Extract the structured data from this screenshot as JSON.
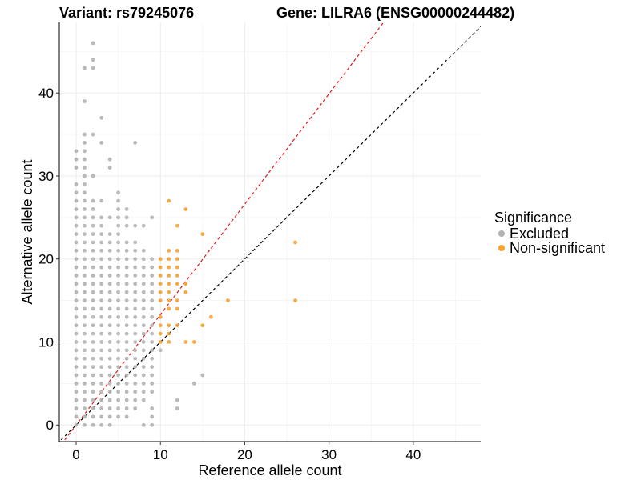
{
  "chart_data": {
    "type": "scatter",
    "title_left": "Variant: rs79245076",
    "title_right": "Gene: LILRA6 (ENSG00000244482)",
    "xlabel": "Reference allele count",
    "ylabel": "Alternative allele count",
    "xlim": [
      -2,
      48
    ],
    "ylim": [
      -2,
      48.5
    ],
    "x_ticks": [
      0,
      10,
      20,
      30,
      40
    ],
    "y_ticks": [
      0,
      10,
      20,
      30,
      40
    ],
    "grid": true,
    "legend": {
      "title": "Significance",
      "position": "right",
      "entries": [
        {
          "label": "Excluded",
          "color": "#b3b3b3"
        },
        {
          "label": "Non-significant",
          "color": "#f7a22f"
        }
      ]
    },
    "reference_lines": [
      {
        "name": "y = x",
        "slope": 1,
        "color": "#000000",
        "style": "dashed"
      },
      {
        "name": "upper threshold",
        "slope": 1.33,
        "color": "#e41a1c",
        "style": "dashed"
      }
    ],
    "series": [
      {
        "name": "Excluded",
        "color": "#b3b3b3",
        "points": [
          [
            0,
            0
          ],
          [
            0,
            1
          ],
          [
            0,
            2
          ],
          [
            0,
            3
          ],
          [
            0,
            4
          ],
          [
            0,
            5
          ],
          [
            0,
            6
          ],
          [
            0,
            7
          ],
          [
            0,
            8
          ],
          [
            0,
            9
          ],
          [
            0,
            10
          ],
          [
            0,
            11
          ],
          [
            0,
            12
          ],
          [
            0,
            13
          ],
          [
            0,
            14
          ],
          [
            0,
            15
          ],
          [
            0,
            16
          ],
          [
            0,
            17
          ],
          [
            0,
            18
          ],
          [
            0,
            19
          ],
          [
            0,
            20
          ],
          [
            0,
            21
          ],
          [
            0,
            22
          ],
          [
            0,
            23
          ],
          [
            0,
            24
          ],
          [
            0,
            25
          ],
          [
            0,
            26
          ],
          [
            0,
            27
          ],
          [
            0,
            28
          ],
          [
            0,
            29
          ],
          [
            0,
            31
          ],
          [
            0,
            32
          ],
          [
            0,
            33
          ],
          [
            1,
            0
          ],
          [
            1,
            1
          ],
          [
            1,
            2
          ],
          [
            1,
            3
          ],
          [
            1,
            4
          ],
          [
            1,
            5
          ],
          [
            1,
            6
          ],
          [
            1,
            7
          ],
          [
            1,
            8
          ],
          [
            1,
            9
          ],
          [
            1,
            10
          ],
          [
            1,
            11
          ],
          [
            1,
            12
          ],
          [
            1,
            13
          ],
          [
            1,
            14
          ],
          [
            1,
            15
          ],
          [
            1,
            16
          ],
          [
            1,
            17
          ],
          [
            1,
            18
          ],
          [
            1,
            19
          ],
          [
            1,
            20
          ],
          [
            1,
            21
          ],
          [
            1,
            22
          ],
          [
            1,
            23
          ],
          [
            1,
            24
          ],
          [
            1,
            25
          ],
          [
            1,
            26
          ],
          [
            1,
            27
          ],
          [
            1,
            28
          ],
          [
            1,
            29
          ],
          [
            1,
            30
          ],
          [
            1,
            31
          ],
          [
            1,
            32
          ],
          [
            1,
            33
          ],
          [
            1,
            34
          ],
          [
            1,
            35
          ],
          [
            1,
            39
          ],
          [
            1,
            43
          ],
          [
            2,
            0
          ],
          [
            2,
            1
          ],
          [
            2,
            2
          ],
          [
            2,
            3
          ],
          [
            2,
            4
          ],
          [
            2,
            5
          ],
          [
            2,
            6
          ],
          [
            2,
            7
          ],
          [
            2,
            8
          ],
          [
            2,
            9
          ],
          [
            2,
            10
          ],
          [
            2,
            11
          ],
          [
            2,
            12
          ],
          [
            2,
            13
          ],
          [
            2,
            14
          ],
          [
            2,
            15
          ],
          [
            2,
            16
          ],
          [
            2,
            17
          ],
          [
            2,
            18
          ],
          [
            2,
            19
          ],
          [
            2,
            20
          ],
          [
            2,
            21
          ],
          [
            2,
            22
          ],
          [
            2,
            23
          ],
          [
            2,
            24
          ],
          [
            2,
            25
          ],
          [
            2,
            26
          ],
          [
            2,
            27
          ],
          [
            2,
            30
          ],
          [
            2,
            35
          ],
          [
            2,
            43
          ],
          [
            2,
            44
          ],
          [
            2,
            46
          ],
          [
            3,
            0
          ],
          [
            3,
            1
          ],
          [
            3,
            2
          ],
          [
            3,
            3
          ],
          [
            3,
            4
          ],
          [
            3,
            5
          ],
          [
            3,
            6
          ],
          [
            3,
            7
          ],
          [
            3,
            8
          ],
          [
            3,
            9
          ],
          [
            3,
            10
          ],
          [
            3,
            11
          ],
          [
            3,
            12
          ],
          [
            3,
            13
          ],
          [
            3,
            14
          ],
          [
            3,
            15
          ],
          [
            3,
            16
          ],
          [
            3,
            17
          ],
          [
            3,
            18
          ],
          [
            3,
            19
          ],
          [
            3,
            20
          ],
          [
            3,
            21
          ],
          [
            3,
            22
          ],
          [
            3,
            23
          ],
          [
            3,
            24
          ],
          [
            3,
            25
          ],
          [
            3,
            27
          ],
          [
            3,
            34
          ],
          [
            3,
            37
          ],
          [
            4,
            0
          ],
          [
            4,
            1
          ],
          [
            4,
            2
          ],
          [
            4,
            3
          ],
          [
            4,
            4
          ],
          [
            4,
            5
          ],
          [
            4,
            6
          ],
          [
            4,
            7
          ],
          [
            4,
            8
          ],
          [
            4,
            9
          ],
          [
            4,
            10
          ],
          [
            4,
            11
          ],
          [
            4,
            12
          ],
          [
            4,
            13
          ],
          [
            4,
            14
          ],
          [
            4,
            15
          ],
          [
            4,
            16
          ],
          [
            4,
            17
          ],
          [
            4,
            18
          ],
          [
            4,
            19
          ],
          [
            4,
            20
          ],
          [
            4,
            21
          ],
          [
            4,
            22
          ],
          [
            4,
            23
          ],
          [
            4,
            25
          ],
          [
            4,
            31
          ],
          [
            4,
            32
          ],
          [
            5,
            1
          ],
          [
            5,
            2
          ],
          [
            5,
            3
          ],
          [
            5,
            4
          ],
          [
            5,
            5
          ],
          [
            5,
            6
          ],
          [
            5,
            7
          ],
          [
            5,
            8
          ],
          [
            5,
            9
          ],
          [
            5,
            10
          ],
          [
            5,
            11
          ],
          [
            5,
            12
          ],
          [
            5,
            13
          ],
          [
            5,
            14
          ],
          [
            5,
            15
          ],
          [
            5,
            16
          ],
          [
            5,
            17
          ],
          [
            5,
            18
          ],
          [
            5,
            19
          ],
          [
            5,
            20
          ],
          [
            5,
            21
          ],
          [
            5,
            22
          ],
          [
            5,
            23
          ],
          [
            5,
            24
          ],
          [
            5,
            25
          ],
          [
            5,
            26
          ],
          [
            5,
            27
          ],
          [
            5,
            28
          ],
          [
            6,
            1
          ],
          [
            6,
            2
          ],
          [
            6,
            3
          ],
          [
            6,
            4
          ],
          [
            6,
            5
          ],
          [
            6,
            6
          ],
          [
            6,
            7
          ],
          [
            6,
            8
          ],
          [
            6,
            9
          ],
          [
            6,
            10
          ],
          [
            6,
            11
          ],
          [
            6,
            12
          ],
          [
            6,
            13
          ],
          [
            6,
            14
          ],
          [
            6,
            15
          ],
          [
            6,
            16
          ],
          [
            6,
            17
          ],
          [
            6,
            18
          ],
          [
            6,
            19
          ],
          [
            6,
            20
          ],
          [
            6,
            21
          ],
          [
            6,
            22
          ],
          [
            6,
            24
          ],
          [
            6,
            25
          ],
          [
            6,
            26
          ],
          [
            7,
            2
          ],
          [
            7,
            3
          ],
          [
            7,
            4
          ],
          [
            7,
            5
          ],
          [
            7,
            6
          ],
          [
            7,
            7
          ],
          [
            7,
            8
          ],
          [
            7,
            9
          ],
          [
            7,
            10
          ],
          [
            7,
            11
          ],
          [
            7,
            12
          ],
          [
            7,
            13
          ],
          [
            7,
            14
          ],
          [
            7,
            15
          ],
          [
            7,
            16
          ],
          [
            7,
            17
          ],
          [
            7,
            18
          ],
          [
            7,
            19
          ],
          [
            7,
            20
          ],
          [
            7,
            21
          ],
          [
            7,
            22
          ],
          [
            7,
            24
          ],
          [
            7,
            34
          ],
          [
            8,
            0
          ],
          [
            8,
            3
          ],
          [
            8,
            4
          ],
          [
            8,
            5
          ],
          [
            8,
            6
          ],
          [
            8,
            7
          ],
          [
            8,
            8
          ],
          [
            8,
            9
          ],
          [
            8,
            10
          ],
          [
            8,
            11
          ],
          [
            8,
            12
          ],
          [
            8,
            13
          ],
          [
            8,
            14
          ],
          [
            8,
            15
          ],
          [
            8,
            16
          ],
          [
            8,
            17
          ],
          [
            8,
            18
          ],
          [
            8,
            19
          ],
          [
            8,
            20
          ],
          [
            8,
            21
          ],
          [
            8,
            24
          ],
          [
            9,
            0
          ],
          [
            9,
            1
          ],
          [
            9,
            2
          ],
          [
            9,
            4
          ],
          [
            9,
            5
          ],
          [
            9,
            6
          ],
          [
            9,
            7
          ],
          [
            9,
            8
          ],
          [
            9,
            9
          ],
          [
            9,
            10
          ],
          [
            9,
            11
          ],
          [
            9,
            12
          ],
          [
            9,
            13
          ],
          [
            9,
            14
          ],
          [
            9,
            15
          ],
          [
            9,
            16
          ],
          [
            9,
            17
          ],
          [
            9,
            18
          ],
          [
            9,
            19
          ],
          [
            9,
            20
          ],
          [
            9,
            25
          ],
          [
            10,
            9
          ],
          [
            12,
            2
          ],
          [
            12,
            3
          ],
          [
            14,
            5
          ],
          [
            15,
            6
          ]
        ]
      },
      {
        "name": "Non-significant",
        "color": "#f7a22f",
        "points": [
          [
            10,
            10
          ],
          [
            10,
            11
          ],
          [
            10,
            12
          ],
          [
            10,
            13
          ],
          [
            10,
            15
          ],
          [
            10,
            16
          ],
          [
            10,
            17
          ],
          [
            10,
            18
          ],
          [
            10,
            19
          ],
          [
            10,
            20
          ],
          [
            11,
            10
          ],
          [
            11,
            11
          ],
          [
            11,
            12
          ],
          [
            11,
            14
          ],
          [
            11,
            15
          ],
          [
            11,
            16
          ],
          [
            11,
            17
          ],
          [
            11,
            18
          ],
          [
            11,
            19
          ],
          [
            11,
            20
          ],
          [
            11,
            21
          ],
          [
            11,
            27
          ],
          [
            12,
            12
          ],
          [
            12,
            14
          ],
          [
            12,
            15
          ],
          [
            12,
            17
          ],
          [
            12,
            18
          ],
          [
            12,
            19
          ],
          [
            12,
            20
          ],
          [
            12,
            21
          ],
          [
            12,
            24
          ],
          [
            13,
            10
          ],
          [
            13,
            16
          ],
          [
            13,
            17
          ],
          [
            13,
            26
          ],
          [
            14,
            10
          ],
          [
            15,
            12
          ],
          [
            15,
            23
          ],
          [
            16,
            13
          ],
          [
            18,
            15
          ],
          [
            26,
            15
          ],
          [
            26,
            22
          ]
        ]
      }
    ]
  }
}
